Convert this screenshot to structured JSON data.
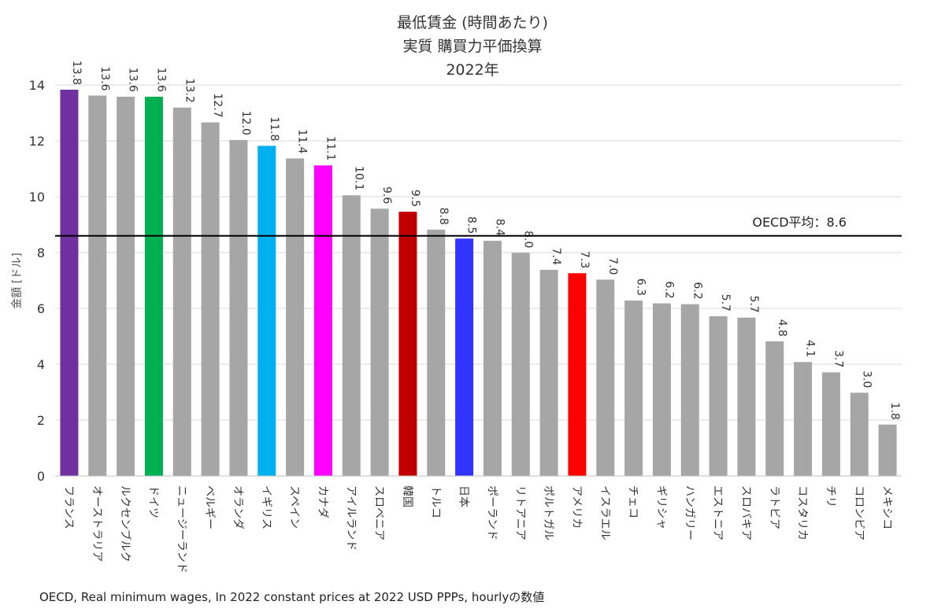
{
  "chart_data": {
    "type": "bar",
    "title_lines": [
      "最低賃金 (時間あたり)",
      "実質 購買力平価換算",
      "2022年"
    ],
    "ylabel": "金額 [ドル]",
    "xlabel": "",
    "ylim": [
      0,
      14
    ],
    "yticks": [
      0,
      2,
      4,
      6,
      8,
      10,
      12,
      14
    ],
    "grid": true,
    "categories": [
      "フランス",
      "オーストラリア",
      "ルクセンブルク",
      "ドイツ",
      "ニュージーランド",
      "ベルギー",
      "オランダ",
      "イギリス",
      "スペイン",
      "カナダ",
      "アイルランド",
      "スロベニア",
      "韓国",
      "トルコ",
      "日本",
      "ポーランド",
      "リトアニア",
      "ポルトガル",
      "アメリカ",
      "イスラエル",
      "チェコ",
      "ギリシャ",
      "ハンガリー",
      "エストニア",
      "スロバキア",
      "ラトビア",
      "コスタリカ",
      "チリ",
      "コロンビア",
      "メキシコ"
    ],
    "values": [
      13.83,
      13.62,
      13.58,
      13.58,
      13.19,
      12.66,
      12.03,
      11.82,
      11.37,
      11.12,
      10.05,
      9.57,
      9.46,
      8.82,
      8.5,
      8.42,
      7.99,
      7.38,
      7.26,
      7.03,
      6.28,
      6.18,
      6.15,
      5.72,
      5.67,
      4.82,
      4.08,
      3.71,
      2.98,
      1.84
    ],
    "labels": [
      "13.8",
      "13.6",
      "13.6",
      "13.6",
      "13.2",
      "12.7",
      "12.0",
      "11.8",
      "11.4",
      "11.1",
      "10.1",
      "9.6",
      "9.5",
      "8.8",
      "8.5",
      "8.4",
      "8.0",
      "7.4",
      "7.3",
      "7.0",
      "6.3",
      "6.2",
      "6.2",
      "5.7",
      "5.7",
      "4.8",
      "4.1",
      "3.7",
      "3.0",
      "1.8"
    ],
    "colors": [
      "#7030a0",
      "#a6a6a6",
      "#a6a6a6",
      "#00b050",
      "#a6a6a6",
      "#a6a6a6",
      "#a6a6a6",
      "#00b0f0",
      "#a6a6a6",
      "#ff00ff",
      "#a6a6a6",
      "#a6a6a6",
      "#c00000",
      "#a6a6a6",
      "#3333ff",
      "#a6a6a6",
      "#a6a6a6",
      "#a6a6a6",
      "#ff0000",
      "#a6a6a6",
      "#a6a6a6",
      "#a6a6a6",
      "#a6a6a6",
      "#a6a6a6",
      "#a6a6a6",
      "#a6a6a6",
      "#a6a6a6",
      "#a6a6a6",
      "#a6a6a6",
      "#a6a6a6"
    ],
    "reference_line": {
      "value": 8.6,
      "label": "OECD平均：8.6",
      "color": "#000000"
    },
    "legend": "none"
  },
  "source_note": "OECD, Real minimum wages, In 2022 constant prices at 2022 USD PPPs, hourlyの数値"
}
